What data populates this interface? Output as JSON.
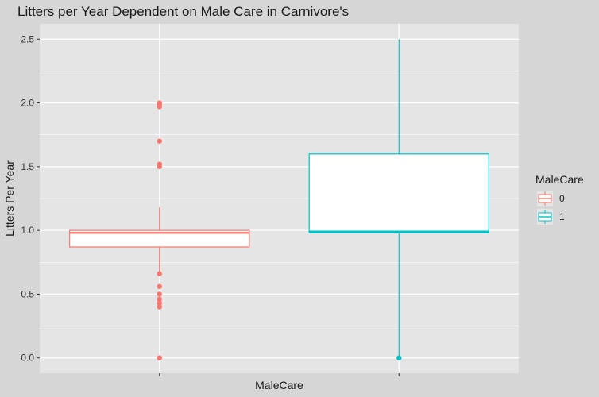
{
  "chart_data": {
    "type": "boxplot",
    "title": "Litters per Year Dependent on Male Care in Carnivore's",
    "xlabel": "MaleCare",
    "ylabel": "Litters Per Year",
    "ylim": [
      -0.12,
      2.62
    ],
    "yticks": [
      0.0,
      0.5,
      1.0,
      1.5,
      2.0,
      2.5
    ],
    "ytick_labels": [
      "0.0",
      "0.5",
      "1.0",
      "1.5",
      "2.0",
      "2.5"
    ],
    "categories": [
      "0",
      "1"
    ],
    "grid": true,
    "legend": {
      "title": "MaleCare",
      "placement": "right",
      "entries": [
        "0",
        "1"
      ]
    },
    "series": [
      {
        "name": "0",
        "color": "#f8766d",
        "q1": 0.87,
        "median": 0.98,
        "q3": 1.0,
        "whisker_low": 0.67,
        "whisker_high": 1.18,
        "outliers": [
          2.0,
          1.99,
          1.97,
          1.7,
          1.52,
          1.5,
          0.66,
          0.56,
          0.5,
          0.46,
          0.43,
          0.4,
          0.0,
          0.0
        ]
      },
      {
        "name": "1",
        "color": "#00bfc4",
        "q1": 0.98,
        "median": 0.99,
        "q3": 1.6,
        "whisker_low": 0.0,
        "whisker_high": 2.5,
        "outliers": [
          0.0
        ]
      }
    ]
  },
  "colors": {
    "background": "#d6d6d6",
    "panel": "#e5e5e5",
    "grid": "#ffffff",
    "text": "#1a1a1a"
  }
}
